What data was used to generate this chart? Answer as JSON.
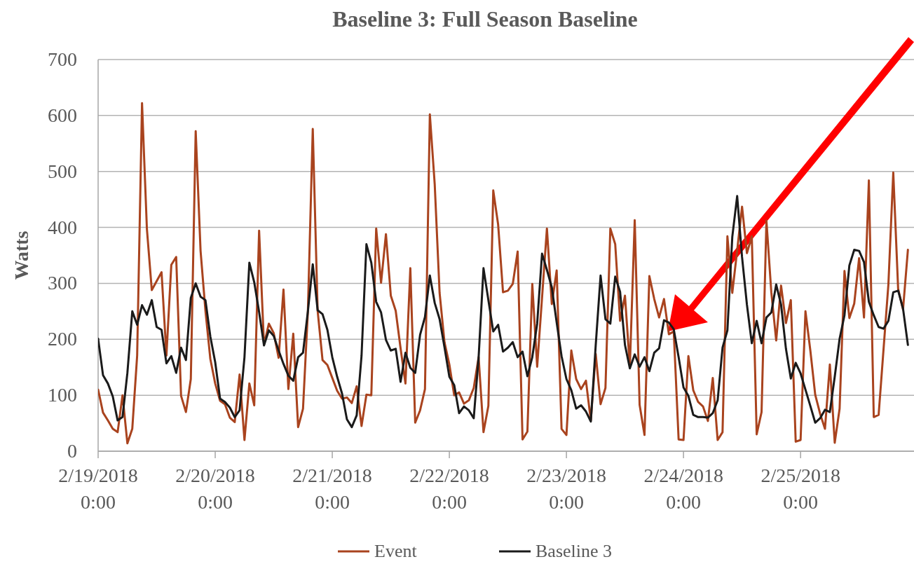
{
  "chart_data": {
    "type": "line",
    "title": "Baseline 3: Full Season Baseline",
    "ylabel": "Watts",
    "xlim": [
      "2018-02-19T00:00",
      "2018-02-25T23:15"
    ],
    "xticks": [
      {
        "value": "2018-02-19T00:00",
        "label": "2/19/2018 0:00"
      },
      {
        "value": "2018-02-20T00:00",
        "label": "2/20/2018 0:00"
      },
      {
        "value": "2018-02-21T00:00",
        "label": "2/21/2018 0:00"
      },
      {
        "value": "2018-02-22T00:00",
        "label": "2/22/2018 0:00"
      },
      {
        "value": "2018-02-23T00:00",
        "label": "2/23/2018 0:00"
      },
      {
        "value": "2018-02-24T00:00",
        "label": "2/24/2018 0:00"
      },
      {
        "value": "2018-02-25T00:00",
        "label": "2/25/2018 0:00"
      }
    ],
    "ylim": [
      0,
      700
    ],
    "yticks": [
      0,
      100,
      200,
      300,
      400,
      500,
      600,
      700
    ],
    "grid": "y",
    "legend": "bottom",
    "series": [
      {
        "name": "Event",
        "color": "#a9431e",
        "x": [
          "2018-02-19T00:00",
          "2018-02-19T01:00",
          "2018-02-19T02:00",
          "2018-02-19T03:00",
          "2018-02-19T04:00",
          "2018-02-19T05:00",
          "2018-02-19T06:00",
          "2018-02-19T07:00",
          "2018-02-19T08:00",
          "2018-02-19T09:00",
          "2018-02-19T10:00",
          "2018-02-19T11:00",
          "2018-02-19T13:00",
          "2018-02-19T14:00",
          "2018-02-19T15:00",
          "2018-02-19T16:00",
          "2018-02-19T17:00",
          "2018-02-19T18:00",
          "2018-02-19T19:00",
          "2018-02-19T20:00",
          "2018-02-19T21:00",
          "2018-02-19T22:00",
          "2018-02-19T23:00",
          "2018-02-20T00:00",
          "2018-02-20T01:00",
          "2018-02-20T02:00",
          "2018-02-20T03:00",
          "2018-02-20T04:00",
          "2018-02-20T05:00",
          "2018-02-20T06:00",
          "2018-02-20T07:00",
          "2018-02-20T08:00",
          "2018-02-20T09:00",
          "2018-02-20T10:00",
          "2018-02-20T11:00",
          "2018-02-20T12:00",
          "2018-02-20T13:00",
          "2018-02-20T14:00",
          "2018-02-20T15:00",
          "2018-02-20T16:00",
          "2018-02-20T17:00",
          "2018-02-20T18:00",
          "2018-02-20T19:00",
          "2018-02-20T20:00",
          "2018-02-20T21:00",
          "2018-02-20T22:00",
          "2018-02-20T23:00",
          "2018-02-21T00:00",
          "2018-02-21T01:00",
          "2018-02-21T02:00",
          "2018-02-21T03:00",
          "2018-02-21T04:00",
          "2018-02-21T05:00",
          "2018-02-21T06:00",
          "2018-02-21T07:00",
          "2018-02-21T08:00",
          "2018-02-21T09:00",
          "2018-02-21T10:00",
          "2018-02-21T11:00",
          "2018-02-21T12:00",
          "2018-02-21T13:00",
          "2018-02-21T14:00",
          "2018-02-21T15:00",
          "2018-02-21T16:00",
          "2018-02-21T17:00",
          "2018-02-21T18:00",
          "2018-02-21T19:00",
          "2018-02-21T20:00",
          "2018-02-21T21:00",
          "2018-02-21T22:00",
          "2018-02-21T23:00",
          "2018-02-22T00:00",
          "2018-02-22T01:00",
          "2018-02-22T02:00",
          "2018-02-22T03:00",
          "2018-02-22T04:00",
          "2018-02-22T05:00",
          "2018-02-22T06:00",
          "2018-02-22T07:00",
          "2018-02-22T08:00",
          "2018-02-22T09:00",
          "2018-02-22T10:00",
          "2018-02-22T11:00",
          "2018-02-22T12:00",
          "2018-02-22T13:00",
          "2018-02-22T14:00",
          "2018-02-22T15:00",
          "2018-02-22T16:00",
          "2018-02-22T17:00",
          "2018-02-22T18:00",
          "2018-02-22T20:00",
          "2018-02-22T21:00",
          "2018-02-22T22:00",
          "2018-02-22T23:00",
          "2018-02-23T00:00",
          "2018-02-23T01:00",
          "2018-02-23T02:00",
          "2018-02-23T03:00",
          "2018-02-23T04:00",
          "2018-02-23T05:00",
          "2018-02-23T06:00",
          "2018-02-23T07:00",
          "2018-02-23T08:00",
          "2018-02-23T09:00",
          "2018-02-23T10:00",
          "2018-02-23T11:00",
          "2018-02-23T12:00",
          "2018-02-23T13:00",
          "2018-02-23T14:00",
          "2018-02-23T15:00",
          "2018-02-23T16:00",
          "2018-02-23T17:00",
          "2018-02-23T18:00",
          "2018-02-23T19:00",
          "2018-02-23T20:00",
          "2018-02-23T21:00",
          "2018-02-23T22:00",
          "2018-02-23T23:00",
          "2018-02-24T00:00",
          "2018-02-24T01:00",
          "2018-02-24T02:00",
          "2018-02-24T03:00",
          "2018-02-24T04:00",
          "2018-02-24T05:00",
          "2018-02-24T06:00",
          "2018-02-24T07:00",
          "2018-02-24T08:00",
          "2018-02-24T09:00",
          "2018-02-24T10:00",
          "2018-02-24T11:00",
          "2018-02-24T12:00",
          "2018-02-24T13:00",
          "2018-02-24T14:00",
          "2018-02-24T15:00",
          "2018-02-24T16:00",
          "2018-02-24T17:00",
          "2018-02-24T18:00",
          "2018-02-24T19:00",
          "2018-02-24T20:00",
          "2018-02-24T21:00",
          "2018-02-24T22:00",
          "2018-02-24T23:00",
          "2018-02-25T00:00",
          "2018-02-25T01:00",
          "2018-02-25T02:00",
          "2018-02-25T03:00",
          "2018-02-25T04:00",
          "2018-02-25T05:00",
          "2018-02-25T06:00",
          "2018-02-25T07:00",
          "2018-02-25T08:00",
          "2018-02-25T09:00",
          "2018-02-25T10:00",
          "2018-02-25T11:00",
          "2018-02-25T12:00",
          "2018-02-25T13:00",
          "2018-02-25T14:00",
          "2018-02-25T15:00",
          "2018-02-25T16:00",
          "2018-02-25T18:00",
          "2018-02-25T19:00",
          "2018-02-25T20:00",
          "2018-02-25T21:00",
          "2018-02-25T22:00"
        ],
        "values": [
          110,
          69,
          55,
          40,
          34,
          100,
          14,
          40,
          171,
          622,
          397,
          288,
          320,
          171,
          333,
          347,
          99,
          70,
          129,
          572,
          358,
          251,
          165,
          121,
          90,
          84,
          60,
          52,
          137,
          20,
          121,
          82,
          394,
          190,
          228,
          211,
          167,
          289,
          111,
          210,
          43,
          76,
          250,
          576,
          251,
          163,
          154,
          131,
          108,
          94,
          96,
          86,
          116,
          45,
          101,
          100,
          398,
          301,
          388,
          278,
          251,
          184,
          121,
          327,
          51,
          73,
          111,
          602,
          477,
          283,
          195,
          155,
          100,
          105,
          85,
          91,
          113,
          168,
          34,
          81,
          466,
          405,
          284,
          287,
          299,
          357,
          21,
          35,
          299,
          151,
          398,
          263,
          323,
          40,
          29,
          180,
          129,
          111,
          126,
          55,
          174,
          84,
          113,
          398,
          370,
          233,
          278,
          151,
          413,
          83,
          29,
          313,
          272,
          239,
          272,
          209,
          214,
          21,
          20,
          170,
          109,
          88,
          80,
          54,
          131,
          20,
          34,
          384,
          283,
          359,
          437,
          354,
          384,
          30,
          70,
          412,
          284,
          198,
          296,
          229,
          270,
          17,
          20,
          250,
          180,
          101,
          67,
          40,
          155,
          15,
          76,
          322,
          238,
          264,
          345,
          239,
          484,
          61,
          65,
          298,
          498,
          290,
          253,
          360
        ]
      },
      {
        "name": "Baseline 3",
        "color": "#1a1a1a",
        "x": [
          "2018-02-19T00:00",
          "2018-02-19T01:00",
          "2018-02-19T02:00",
          "2018-02-19T03:00",
          "2018-02-19T04:00",
          "2018-02-19T05:00",
          "2018-02-19T06:00",
          "2018-02-19T07:00",
          "2018-02-19T08:00",
          "2018-02-19T09:00",
          "2018-02-19T10:00",
          "2018-02-19T11:00",
          "2018-02-19T12:00",
          "2018-02-19T13:00",
          "2018-02-19T14:00",
          "2018-02-19T15:00",
          "2018-02-19T16:00",
          "2018-02-19T17:00",
          "2018-02-19T18:00",
          "2018-02-19T19:00",
          "2018-02-19T20:00",
          "2018-02-19T21:00",
          "2018-02-19T22:00",
          "2018-02-19T23:00",
          "2018-02-20T00:00",
          "2018-02-20T01:00",
          "2018-02-20T02:00",
          "2018-02-20T03:00",
          "2018-02-20T04:00",
          "2018-02-20T05:00",
          "2018-02-20T06:00",
          "2018-02-20T07:00",
          "2018-02-20T08:00",
          "2018-02-20T09:00",
          "2018-02-20T10:00",
          "2018-02-20T11:00",
          "2018-02-20T12:00",
          "2018-02-20T13:00",
          "2018-02-20T14:00",
          "2018-02-20T15:00",
          "2018-02-20T16:00",
          "2018-02-20T17:00",
          "2018-02-20T18:00",
          "2018-02-20T19:00",
          "2018-02-20T20:00",
          "2018-02-20T21:00",
          "2018-02-20T22:00",
          "2018-02-20T23:00",
          "2018-02-21T00:00",
          "2018-02-21T01:00",
          "2018-02-21T02:00",
          "2018-02-21T03:00",
          "2018-02-21T04:00",
          "2018-02-21T05:00",
          "2018-02-21T06:00",
          "2018-02-21T07:00",
          "2018-02-21T08:00",
          "2018-02-21T09:00",
          "2018-02-21T10:00",
          "2018-02-21T11:00",
          "2018-02-21T12:00",
          "2018-02-21T13:00",
          "2018-02-21T14:00",
          "2018-02-21T15:00",
          "2018-02-21T16:00",
          "2018-02-21T17:00",
          "2018-02-21T18:00",
          "2018-02-21T19:00",
          "2018-02-21T20:00",
          "2018-02-21T21:00",
          "2018-02-21T22:00",
          "2018-02-21T23:00",
          "2018-02-22T00:00",
          "2018-02-22T01:00",
          "2018-02-22T02:00",
          "2018-02-22T03:00",
          "2018-02-22T04:00",
          "2018-02-22T05:00",
          "2018-02-22T06:00",
          "2018-02-22T07:00",
          "2018-02-22T08:00",
          "2018-02-22T09:00",
          "2018-02-22T10:00",
          "2018-02-22T11:00",
          "2018-02-22T12:00",
          "2018-02-22T13:00",
          "2018-02-22T14:00",
          "2018-02-22T15:00",
          "2018-02-22T16:00",
          "2018-02-22T17:00",
          "2018-02-22T18:00",
          "2018-02-22T19:00",
          "2018-02-22T20:00",
          "2018-02-22T21:00",
          "2018-02-22T22:00",
          "2018-02-22T23:00",
          "2018-02-23T00:00",
          "2018-02-23T01:00",
          "2018-02-23T02:00",
          "2018-02-23T03:00",
          "2018-02-23T04:00",
          "2018-02-23T05:00",
          "2018-02-23T06:00",
          "2018-02-23T07:00",
          "2018-02-23T08:00",
          "2018-02-23T09:00",
          "2018-02-23T10:00",
          "2018-02-23T11:00",
          "2018-02-23T12:00",
          "2018-02-23T13:00",
          "2018-02-23T14:00",
          "2018-02-23T15:00",
          "2018-02-23T16:00",
          "2018-02-23T17:00",
          "2018-02-23T18:00",
          "2018-02-23T19:00",
          "2018-02-23T20:00",
          "2018-02-23T21:00",
          "2018-02-23T22:00",
          "2018-02-23T23:00",
          "2018-02-24T00:00",
          "2018-02-24T01:00",
          "2018-02-24T02:00",
          "2018-02-24T03:00",
          "2018-02-24T04:00",
          "2018-02-24T05:00",
          "2018-02-24T06:00",
          "2018-02-24T07:00",
          "2018-02-24T08:00",
          "2018-02-24T09:00",
          "2018-02-24T10:00",
          "2018-02-24T11:00",
          "2018-02-24T12:00",
          "2018-02-24T13:00",
          "2018-02-24T14:00",
          "2018-02-24T15:00",
          "2018-02-24T16:00",
          "2018-02-24T17:00",
          "2018-02-24T18:00",
          "2018-02-24T19:00",
          "2018-02-24T20:00",
          "2018-02-24T21:00",
          "2018-02-24T22:00",
          "2018-02-24T23:00",
          "2018-02-25T00:00",
          "2018-02-25T01:00",
          "2018-02-25T02:00",
          "2018-02-25T03:00",
          "2018-02-25T04:00",
          "2018-02-25T05:00",
          "2018-02-25T06:00",
          "2018-02-25T07:00",
          "2018-02-25T08:00",
          "2018-02-25T09:00",
          "2018-02-25T10:00",
          "2018-02-25T11:00",
          "2018-02-25T12:00",
          "2018-02-25T13:00",
          "2018-02-25T14:00",
          "2018-02-25T15:00",
          "2018-02-25T16:00",
          "2018-02-25T17:00",
          "2018-02-25T18:00",
          "2018-02-25T19:00",
          "2018-02-25T20:00",
          "2018-02-25T21:00",
          "2018-02-25T22:00"
        ],
        "values": [
          201,
          136,
          121,
          98,
          55,
          61,
          140,
          250,
          226,
          261,
          244,
          270,
          222,
          217,
          157,
          170,
          140,
          185,
          163,
          274,
          300,
          276,
          270,
          205,
          159,
          94,
          88,
          78,
          61,
          73,
          168,
          337,
          302,
          249,
          189,
          216,
          206,
          180,
          156,
          135,
          126,
          168,
          176,
          250,
          334,
          252,
          245,
          217,
          168,
          133,
          103,
          57,
          43,
          64,
          171,
          370,
          337,
          267,
          248,
          199,
          180,
          183,
          124,
          176,
          149,
          140,
          208,
          240,
          314,
          265,
          236,
          186,
          133,
          118,
          68,
          80,
          73,
          59,
          168,
          327,
          270,
          214,
          226,
          178,
          185,
          195,
          168,
          178,
          134,
          168,
          228,
          353,
          324,
          293,
          230,
          170,
          129,
          109,
          76,
          82,
          71,
          53,
          189,
          314,
          236,
          228,
          312,
          285,
          190,
          148,
          173,
          151,
          168,
          143,
          176,
          184,
          234,
          230,
          218,
          168,
          114,
          99,
          65,
          61,
          61,
          60,
          68,
          91,
          185,
          216,
          383,
          456,
          347,
          262,
          193,
          233,
          193,
          239,
          248,
          298,
          262,
          183,
          130,
          158,
          139,
          110,
          81,
          51,
          59,
          74,
          70,
          133,
          201,
          243,
          332,
          360,
          358,
          338,
          267,
          243,
          222,
          219,
          233,
          284,
          287,
          255,
          190
        ]
      }
    ]
  }
}
